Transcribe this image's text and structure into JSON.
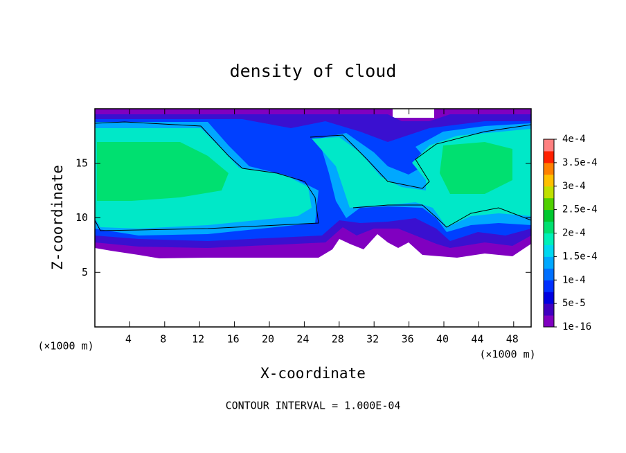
{
  "chart_data": {
    "type": "contour",
    "title": "density of cloud",
    "xlabel": "X-coordinate",
    "ylabel": "Z-coordinate",
    "x_unit": "(×1000 m)",
    "y_unit": "(×1000 m)",
    "footer": "CONTOUR INTERVAL = 1.000E-04",
    "xlim": [
      0,
      50
    ],
    "ylim": [
      0,
      20
    ],
    "xticks": [
      4,
      8,
      12,
      16,
      20,
      24,
      28,
      32,
      36,
      40,
      44,
      48
    ],
    "yticks": [
      5,
      10,
      15
    ],
    "colorbar": {
      "clim": [
        1e-16,
        0.0004
      ],
      "ticks": [
        {
          "value": 1e-16,
          "label": "1e-16"
        },
        {
          "value": 5e-05,
          "label": "5e-5"
        },
        {
          "value": 0.0001,
          "label": "1e-4"
        },
        {
          "value": 0.00015,
          "label": "1.5e-4"
        },
        {
          "value": 0.0002,
          "label": "2e-4"
        },
        {
          "value": 0.00025,
          "label": "2.5e-4"
        },
        {
          "value": 0.0003,
          "label": "3e-4"
        },
        {
          "value": 0.00035,
          "label": "3.5e-4"
        },
        {
          "value": 0.0004,
          "label": "4e-4"
        }
      ],
      "colors": [
        "#8000c0",
        "#4000c0",
        "#0000e0",
        "#0030ff",
        "#0070ff",
        "#00a8ff",
        "#00d8f0",
        "#00f0b8",
        "#00e070",
        "#00c830",
        "#50d000",
        "#c0e000",
        "#ffc000",
        "#ff8000",
        "#ff2000",
        "#ff8080"
      ]
    }
  }
}
